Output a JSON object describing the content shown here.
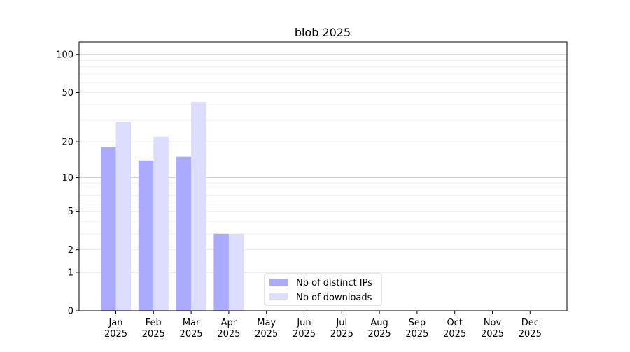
{
  "chart_data": {
    "type": "bar",
    "title": "blob 2025",
    "xlabel": "",
    "ylabel": "",
    "yscale": "log(1+y)",
    "ylim": [
      0,
      120
    ],
    "yticks": [
      0,
      1,
      2,
      5,
      10,
      20,
      50,
      100
    ],
    "grid": true,
    "legend_position": "bottom-center",
    "categories": [
      "Jan\n2025",
      "Feb\n2025",
      "Mar\n2025",
      "Apr\n2025",
      "May\n2025",
      "Jun\n2025",
      "Jul\n2025",
      "Aug\n2025",
      "Sep\n2025",
      "Oct\n2025",
      "Nov\n2025",
      "Dec\n2025"
    ],
    "series": [
      {
        "name": "Nb of distinct IPs",
        "color": "#aaaaff",
        "values": [
          18,
          14,
          15,
          3,
          0,
          0,
          0,
          0,
          0,
          0,
          0,
          0
        ]
      },
      {
        "name": "Nb of downloads",
        "color": "#ddddff",
        "values": [
          29,
          22,
          42,
          3,
          0,
          0,
          0,
          0,
          0,
          0,
          0,
          0
        ]
      }
    ]
  }
}
